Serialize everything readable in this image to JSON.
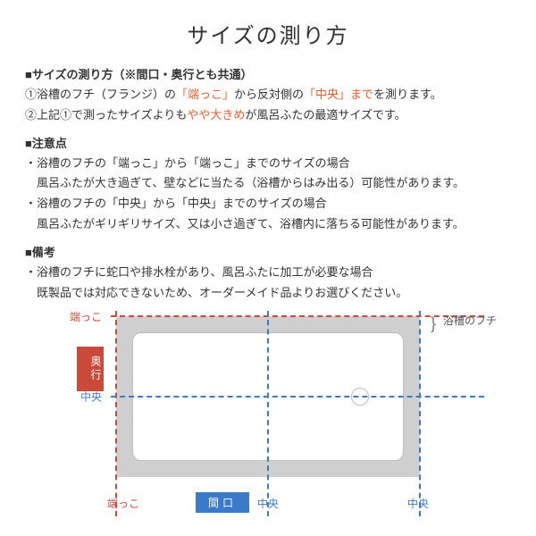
{
  "title": "サイズの測り方",
  "sections": {
    "howto": {
      "heading": "■サイズの測り方（※間口・奥行とも共通）",
      "line1_pre": "①浴槽のフチ（フランジ）の",
      "line1_hl1": "「端っこ」",
      "line1_mid": "から反対側の",
      "line1_hl2": "「中央」まで",
      "line1_post": "を測ります。",
      "line2_pre": "②上記①で測ったサイズよりも",
      "line2_hl": "やや大きめ",
      "line2_post": "が風呂ふたの最適サイズです。"
    },
    "caution": {
      "heading": "■注意点",
      "l1": "・浴槽のフチの「端っこ」から「端っこ」までのサイズの場合",
      "l2": "　風呂ふたが大き過ぎて、壁などに当たる（浴槽からはみ出る）可能性があります。",
      "l3": "・浴槽のフチの「中央」から「中央」までのサイズの場合",
      "l4": "　風呂ふたがギリギリサイズ、又は小さ過ぎて、浴槽内に落ちる可能性があります。"
    },
    "remarks": {
      "heading": "■備考",
      "l1": "・浴槽のフチに蛇口や排水栓があり、風呂ふたに加工が必要な場合",
      "l2": "　既製品では対応できないため、オーダーメイド品よりお選びください。"
    }
  },
  "diagram": {
    "outer_color": "#cfcfcf",
    "inner_border": "#bdbdbd",
    "red": "#c94a3b",
    "blue": "#3b7ac9",
    "labels": {
      "edge_top_left": "端っこ",
      "center_left": "中央",
      "depth": "奥行",
      "edge_right": "浴槽のフチ",
      "bottom_left": "端っこ",
      "bottom_center": "中央",
      "bottom_right": "中央",
      "width": "間口"
    }
  }
}
